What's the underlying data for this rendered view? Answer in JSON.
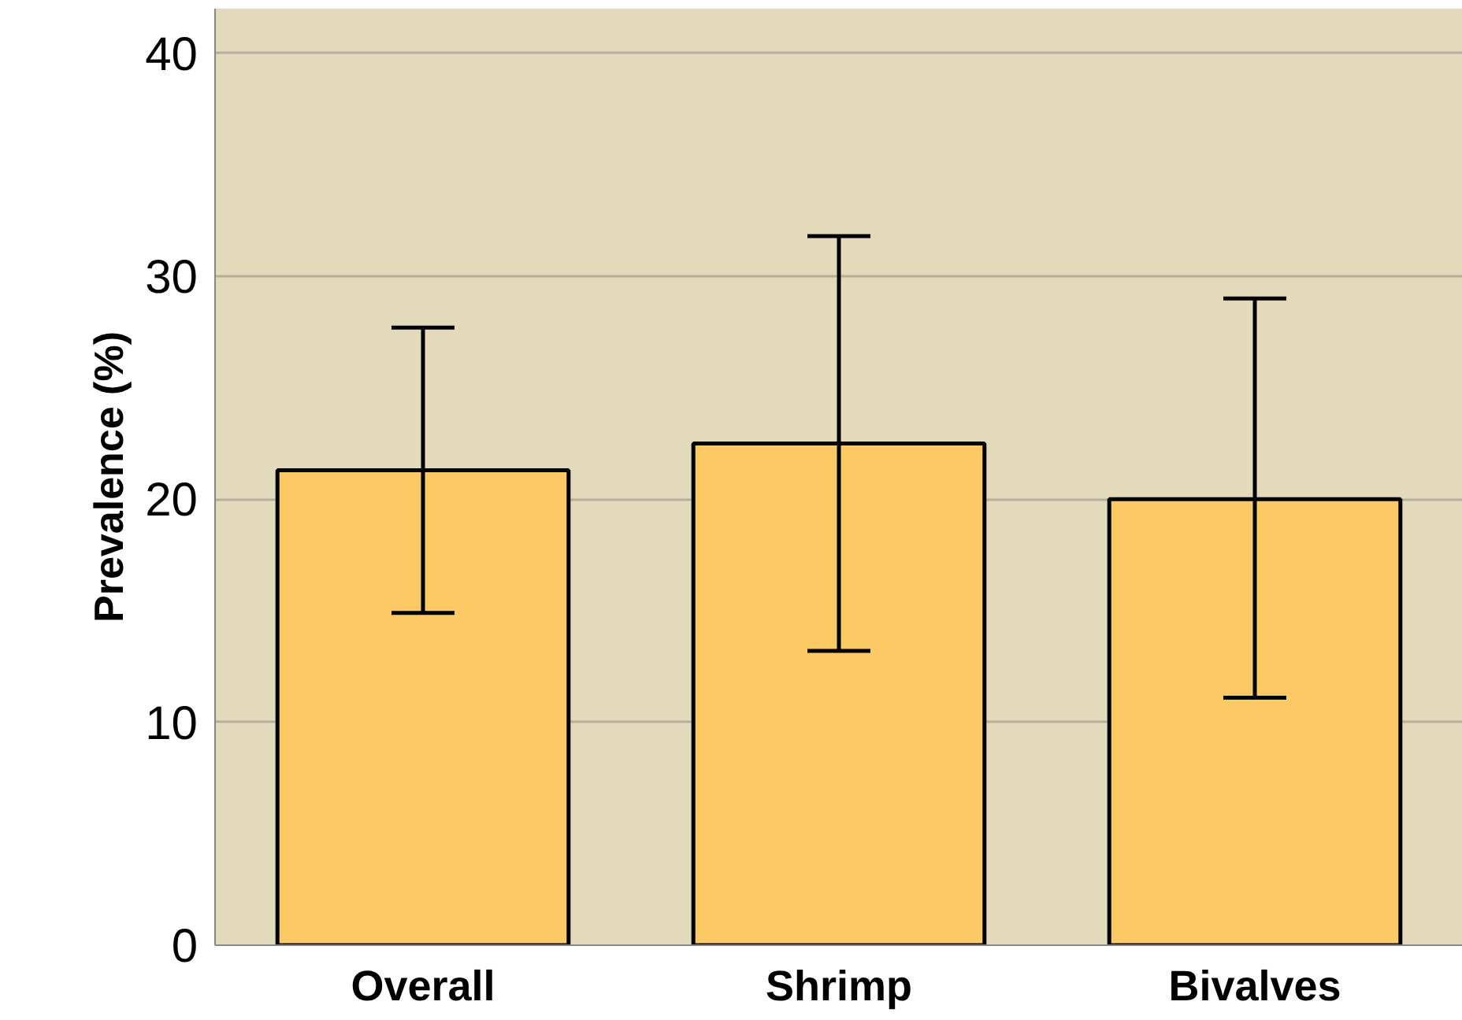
{
  "chart_data": {
    "type": "bar",
    "ylabel": "Prevalence (%)",
    "categories": [
      "Overall",
      "Shrimp",
      "Bivalves"
    ],
    "values": [
      21.3,
      22.5,
      20.0
    ],
    "errors": [
      [
        14.9,
        27.7
      ],
      [
        13.2,
        31.8
      ],
      [
        11.1,
        29.0
      ]
    ],
    "color": "#fdc964",
    "ylim": [
      0,
      42
    ],
    "yticks": [
      0,
      10,
      20,
      30,
      40
    ],
    "grid": "y"
  }
}
